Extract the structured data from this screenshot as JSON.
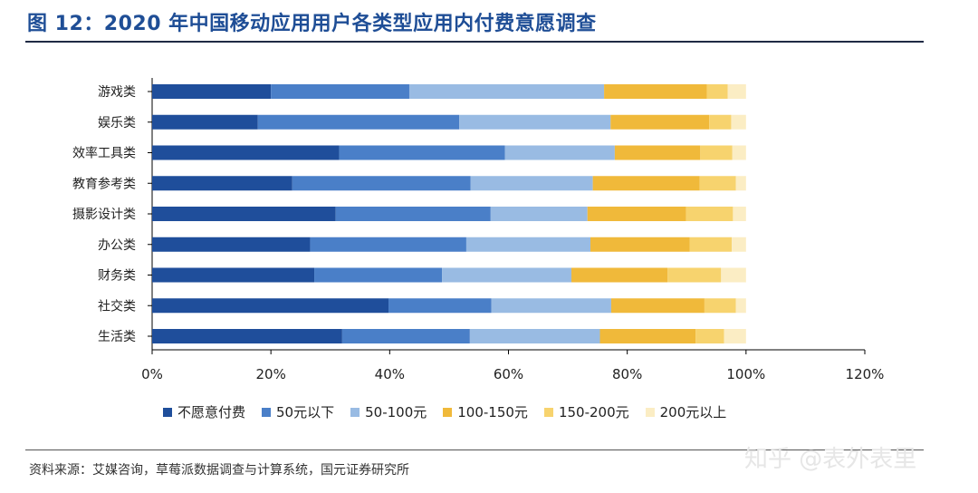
{
  "title": "图 12：2020 年中国移动应用用户各类型应用内付费意愿调查",
  "source": "资料来源：艾媒咨询，草莓派数据调查与计算系统，国元证券研究所",
  "watermark": "知乎 @表外表里",
  "colors": [
    "#1f4e9b",
    "#4a7fc8",
    "#99bbe3",
    "#f0b93a",
    "#f7d36e",
    "#fbedc4"
  ],
  "chart_data": {
    "type": "bar",
    "orientation": "horizontal",
    "stacked": true,
    "categories": [
      "游戏类",
      "娱乐类",
      "效率工具类",
      "教育参考类",
      "摄影设计类",
      "办公类",
      "财务类",
      "社交类",
      "生活类"
    ],
    "series": [
      {
        "name": "不愿意付费",
        "values": [
          20.0,
          17.8,
          31.5,
          23.6,
          30.9,
          26.6,
          27.3,
          39.8,
          32.0
        ]
      },
      {
        "name": "50元以下",
        "values": [
          23.3,
          33.9,
          27.9,
          30.0,
          26.1,
          26.3,
          21.5,
          17.3,
          21.5
        ]
      },
      {
        "name": "50-100元",
        "values": [
          32.8,
          25.5,
          18.5,
          20.6,
          16.3,
          20.9,
          21.8,
          20.2,
          21.9
        ]
      },
      {
        "name": "100-150元",
        "values": [
          17.3,
          16.6,
          14.4,
          18.0,
          16.6,
          16.7,
          16.2,
          15.7,
          16.1
        ]
      },
      {
        "name": "150-200元",
        "values": [
          3.5,
          3.7,
          5.4,
          6.1,
          7.9,
          7.1,
          9.0,
          5.3,
          4.8
        ]
      },
      {
        "name": "200元以上",
        "values": [
          3.1,
          2.5,
          2.3,
          1.7,
          2.2,
          2.4,
          4.2,
          1.7,
          3.7
        ]
      }
    ],
    "x_ticks": [
      "0%",
      "20%",
      "40%",
      "60%",
      "80%",
      "100%",
      "120%"
    ],
    "xlim": [
      0,
      120
    ],
    "legend_position": "bottom"
  }
}
